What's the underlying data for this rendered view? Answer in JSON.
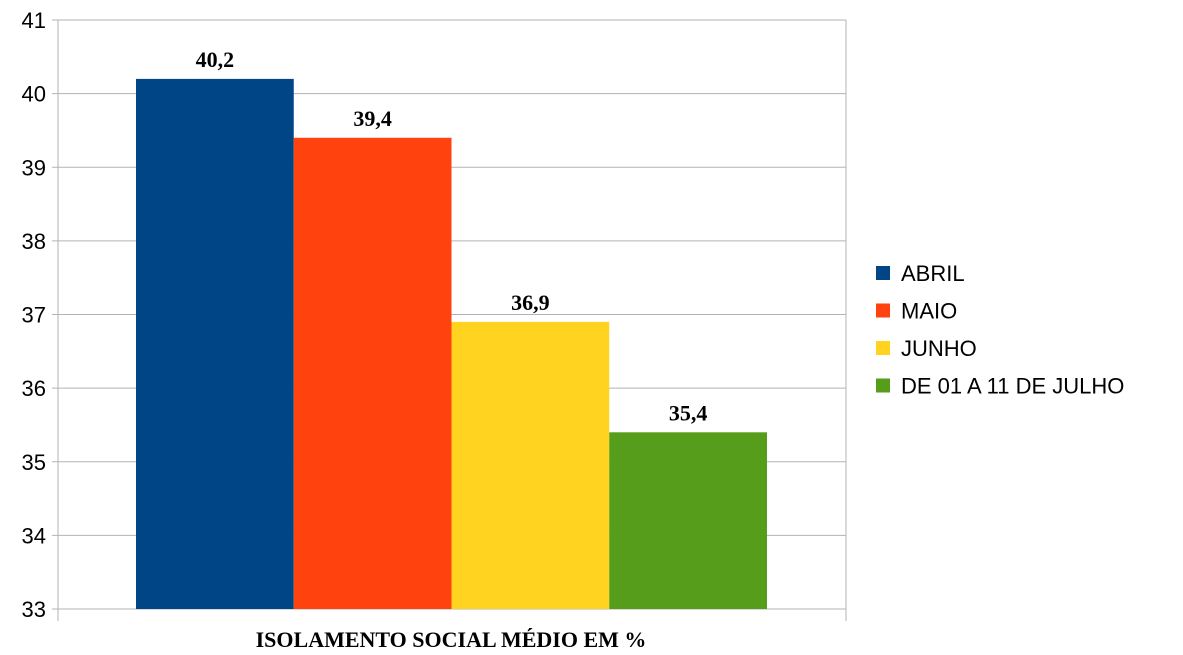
{
  "chart_data": {
    "type": "bar",
    "categories": [
      "ISOLAMENTO SOCIAL MÉDIO EM %"
    ],
    "series": [
      {
        "name": "ABRIL",
        "values": [
          40.2
        ],
        "color": "#004586",
        "label": "40,2"
      },
      {
        "name": "MAIO",
        "values": [
          39.4
        ],
        "color": "#ff420e",
        "label": "39,4"
      },
      {
        "name": "JUNHO",
        "values": [
          36.9
        ],
        "color": "#ffd320",
        "label": "36,9"
      },
      {
        "name": "DE 01 A 11 DE JULHO",
        "values": [
          35.4
        ],
        "color": "#579d1c",
        "label": "35,4"
      }
    ],
    "ylim": [
      33,
      41
    ],
    "yticks": [
      "33",
      "34",
      "35",
      "36",
      "37",
      "38",
      "39",
      "40",
      "41"
    ],
    "grid": true,
    "legend_position": "right",
    "xlabel": "ISOLAMENTO SOCIAL MÉDIO EM %",
    "ylabel": "",
    "title": ""
  }
}
